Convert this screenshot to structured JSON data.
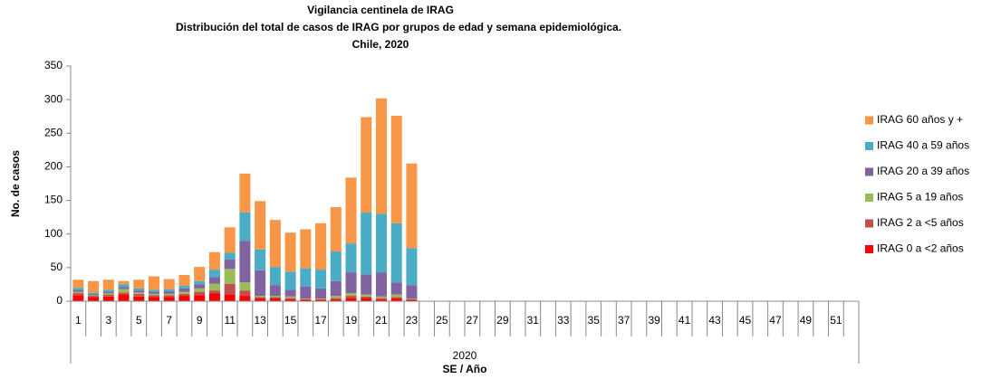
{
  "chart_data": {
    "type": "stacked_bar",
    "title_lines": [
      "Vigilancia centinela de IRAG",
      "Distribución del total de casos de IRAG por  grupos de edad y semana epidemiológica.",
      "Chile, 2020"
    ],
    "y_label": "No. de casos",
    "x_label": "SE / Año",
    "x_group_label": "2020",
    "categories": [
      "1",
      null,
      "3",
      null,
      "5",
      null,
      "7",
      null,
      "9",
      null,
      "11",
      null,
      "13",
      null,
      "15",
      null,
      "17",
      null,
      "19",
      null,
      "21",
      null,
      "23",
      null,
      "25",
      null,
      "27",
      null,
      "29",
      null,
      "31",
      null,
      "33",
      null,
      "35",
      null,
      "37",
      null,
      "39",
      null,
      "41",
      null,
      "43",
      null,
      "45",
      null,
      "47",
      null,
      "49",
      null,
      "51",
      null
    ],
    "series": [
      {
        "name": "IRAG 0 a <2 años",
        "color": "#ff0000",
        "values": [
          9,
          6,
          7,
          10,
          7,
          6,
          6,
          8,
          9,
          12,
          10,
          8,
          4,
          4,
          3,
          2,
          2,
          3,
          5,
          5,
          3,
          4,
          2,
          null,
          null,
          null,
          null,
          null,
          null,
          null,
          null,
          null,
          null,
          null,
          null,
          null,
          null,
          null,
          null,
          null,
          null,
          null,
          null,
          null,
          null,
          null,
          null,
          null,
          null,
          null,
          null,
          null
        ]
      },
      {
        "name": "IRAG 2 a <5 años",
        "color": "#c0504d",
        "values": [
          3,
          2,
          3,
          3,
          4,
          3,
          3,
          3,
          5,
          4,
          16,
          8,
          2,
          2,
          2,
          1,
          1,
          2,
          3,
          2,
          2,
          2,
          1,
          null,
          null,
          null,
          null,
          null,
          null,
          null,
          null,
          null,
          null,
          null,
          null,
          null,
          null,
          null,
          null,
          null,
          null,
          null,
          null,
          null,
          null,
          null,
          null,
          null,
          null,
          null,
          null,
          null
        ]
      },
      {
        "name": "IRAG 5 a 19 años",
        "color": "#9bbb59",
        "values": [
          2,
          1,
          2,
          5,
          2,
          2,
          2,
          3,
          5,
          10,
          22,
          12,
          2,
          2,
          2,
          1,
          1,
          3,
          4,
          3,
          2,
          4,
          1,
          null,
          null,
          null,
          null,
          null,
          null,
          null,
          null,
          null,
          null,
          null,
          null,
          null,
          null,
          null,
          null,
          null,
          null,
          null,
          null,
          null,
          null,
          null,
          null,
          null,
          null,
          null,
          null,
          null
        ]
      },
      {
        "name": "IRAG 20 a 39 años",
        "color": "#8064a2",
        "values": [
          3,
          2,
          2,
          3,
          3,
          3,
          4,
          5,
          6,
          10,
          14,
          62,
          38,
          16,
          10,
          18,
          15,
          22,
          31,
          30,
          36,
          18,
          20,
          null,
          null,
          null,
          null,
          null,
          null,
          null,
          null,
          null,
          null,
          null,
          null,
          null,
          null,
          null,
          null,
          null,
          null,
          null,
          null,
          null,
          null,
          null,
          null,
          null,
          null,
          null,
          null,
          null
        ]
      },
      {
        "name": "IRAG 40 a 59 años",
        "color": "#4bacc6",
        "values": [
          3,
          2,
          3,
          4,
          3,
          3,
          3,
          4,
          5,
          11,
          10,
          42,
          31,
          27,
          27,
          27,
          28,
          44,
          43,
          92,
          87,
          88,
          55,
          null,
          null,
          null,
          null,
          null,
          null,
          null,
          null,
          null,
          null,
          null,
          null,
          null,
          null,
          null,
          null,
          null,
          null,
          null,
          null,
          null,
          null,
          null,
          null,
          null,
          null,
          null,
          null,
          null
        ]
      },
      {
        "name": "IRAG 60 años y +",
        "color": "#f79646",
        "values": [
          12,
          17,
          15,
          5,
          13,
          20,
          15,
          16,
          21,
          26,
          38,
          58,
          72,
          70,
          58,
          58,
          69,
          66,
          98,
          142,
          172,
          160,
          126,
          null,
          null,
          null,
          null,
          null,
          null,
          null,
          null,
          null,
          null,
          null,
          null,
          null,
          null,
          null,
          null,
          null,
          null,
          null,
          null,
          null,
          null,
          null,
          null,
          null,
          null,
          null,
          null,
          null
        ]
      }
    ],
    "ylim": [
      0,
      350
    ],
    "yticks": [
      0,
      50,
      100,
      150,
      200,
      250,
      300,
      350
    ],
    "legend": "right",
    "grid": false
  }
}
